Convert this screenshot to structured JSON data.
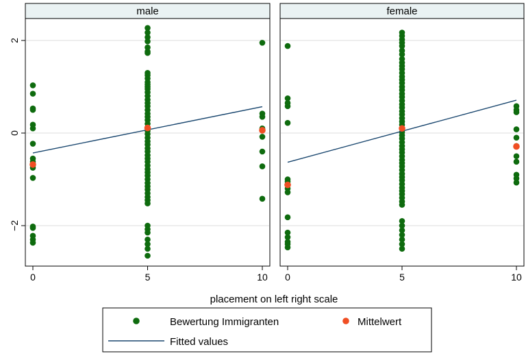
{
  "chart_data": {
    "type": "scatter",
    "xlabel": "placement on left right scale",
    "ylim": [
      -2.8,
      2.4
    ],
    "xlim": [
      -0.3,
      10.3
    ],
    "x_ticks": [
      0,
      5,
      10
    ],
    "y_ticks": [
      -2,
      0,
      2
    ],
    "y_tick_labels": [
      "−2",
      "0",
      "2"
    ],
    "grid": true,
    "legend_position": "bottom",
    "colors": {
      "points": "#0e6b0e",
      "mean": "#f04e23",
      "fit": "#1a476f",
      "panel_header": "#eaf2f3"
    },
    "panels": [
      {
        "label": "male",
        "fit": {
          "x": [
            0,
            10
          ],
          "y": [
            -0.43,
            0.57
          ]
        },
        "points": [
          {
            "x": 0,
            "y": [
              1.03,
              0.85,
              0.53,
              0.5,
              0.18,
              0.1,
              -0.23,
              -0.55,
              -0.62,
              -0.7,
              -0.75,
              -0.97,
              -2.02,
              -2.05,
              -2.22,
              -2.3,
              -2.37
            ]
          },
          {
            "x": 5,
            "y": [
              2.27,
              2.17,
              2.07,
              1.98,
              1.85,
              1.76,
              1.73,
              1.3,
              1.25,
              1.18,
              1.1,
              1.05,
              1.0,
              0.95,
              0.88,
              0.8,
              0.72,
              0.65,
              0.58,
              0.5,
              0.42,
              0.35,
              0.28,
              0.2,
              0.12,
              0.05,
              -0.02,
              -0.1,
              -0.18,
              -0.25,
              -0.33,
              -0.4,
              -0.48,
              -0.55,
              -0.62,
              -0.7,
              -0.78,
              -0.85,
              -0.92,
              -1.0,
              -1.08,
              -1.15,
              -1.22,
              -1.3,
              -1.38,
              -1.45,
              -1.52,
              -2.0,
              -2.08,
              -2.15,
              -2.3,
              -2.4,
              -2.5,
              -2.65
            ]
          },
          {
            "x": 10,
            "y": [
              1.95,
              0.42,
              0.35,
              0.1,
              -0.08,
              -0.4,
              -0.72,
              -1.42
            ]
          }
        ],
        "means": [
          {
            "x": 0,
            "y": -0.68
          },
          {
            "x": 5,
            "y": 0.11
          },
          {
            "x": 10,
            "y": 0.06
          }
        ]
      },
      {
        "label": "female",
        "fit": {
          "x": [
            0,
            10
          ],
          "y": [
            -0.63,
            0.71
          ]
        },
        "points": [
          {
            "x": 0,
            "y": [
              1.88,
              0.75,
              0.65,
              0.58,
              0.22,
              -1.0,
              -1.05,
              -1.2,
              -1.28,
              -1.82,
              -2.15,
              -2.25,
              -2.35,
              -2.4,
              -2.47
            ]
          },
          {
            "x": 5,
            "y": [
              2.17,
              2.1,
              2.02,
              1.95,
              1.88,
              1.78,
              1.7,
              1.6,
              1.52,
              1.45,
              1.38,
              1.3,
              1.22,
              1.15,
              1.08,
              1.0,
              0.93,
              0.85,
              0.78,
              0.7,
              0.62,
              0.55,
              0.47,
              0.4,
              0.32,
              0.25,
              0.18,
              0.1,
              0.02,
              -0.05,
              -0.12,
              -0.2,
              -0.28,
              -0.35,
              -0.42,
              -0.5,
              -0.58,
              -0.65,
              -0.72,
              -0.8,
              -0.88,
              -0.95,
              -1.02,
              -1.1,
              -1.18,
              -1.25,
              -1.32,
              -1.4,
              -1.48,
              -1.55,
              -1.9,
              -2.0,
              -2.1,
              -2.2,
              -2.3,
              -2.4,
              -2.5
            ]
          },
          {
            "x": 10,
            "y": [
              0.58,
              0.5,
              0.45,
              0.08,
              -0.1,
              -0.28,
              -0.5,
              -0.62,
              -0.9,
              -0.98,
              -1.07
            ]
          }
        ],
        "means": [
          {
            "x": 0,
            "y": -1.12
          },
          {
            "x": 5,
            "y": 0.1
          },
          {
            "x": 10,
            "y": -0.29
          }
        ]
      }
    ],
    "legend": {
      "items": [
        {
          "label": "Bewertung Immigranten",
          "kind": "marker",
          "color_key": "points"
        },
        {
          "label": "Mittelwert",
          "kind": "marker",
          "color_key": "mean"
        },
        {
          "label": "Fitted values",
          "kind": "line",
          "color_key": "fit"
        }
      ]
    }
  }
}
